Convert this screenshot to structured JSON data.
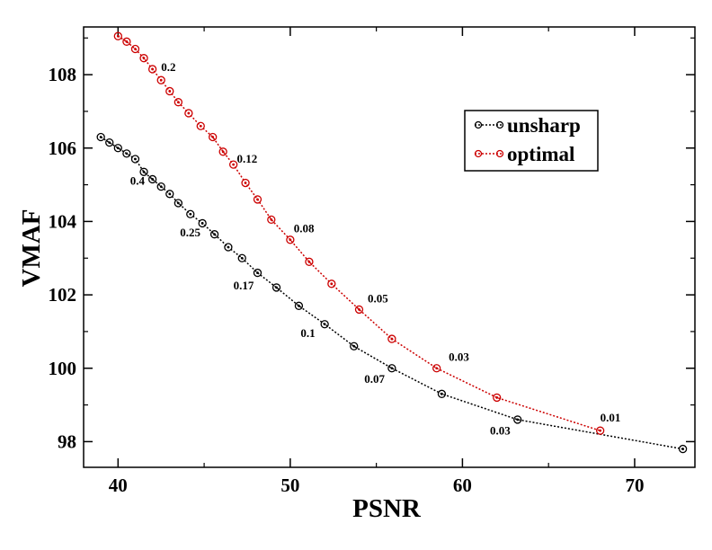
{
  "chart_data": {
    "type": "line",
    "title": "",
    "xlabel": "PSNR",
    "ylabel": "VMAF",
    "xlim": [
      38,
      73.5
    ],
    "ylim": [
      97.3,
      109.3
    ],
    "x_ticks": [
      40,
      50,
      60,
      70
    ],
    "y_ticks": [
      98,
      100,
      102,
      104,
      106,
      108
    ],
    "legend_position": "top-right",
    "series": [
      {
        "name": "unsharp",
        "color": "#000000",
        "points": [
          [
            39.0,
            106.3
          ],
          [
            39.5,
            106.15
          ],
          [
            40.0,
            106.0
          ],
          [
            40.5,
            105.85
          ],
          [
            41.0,
            105.7
          ],
          [
            41.5,
            105.35
          ],
          [
            42.0,
            105.15
          ],
          [
            42.5,
            104.95
          ],
          [
            43.0,
            104.75
          ],
          [
            43.5,
            104.5
          ],
          [
            44.2,
            104.2
          ],
          [
            44.9,
            103.95
          ],
          [
            45.6,
            103.65
          ],
          [
            46.4,
            103.3
          ],
          [
            47.2,
            103.0
          ],
          [
            48.1,
            102.6
          ],
          [
            49.2,
            102.2
          ],
          [
            50.5,
            101.7
          ],
          [
            52.0,
            101.2
          ],
          [
            53.7,
            100.6
          ],
          [
            55.9,
            100.0
          ],
          [
            58.8,
            99.3
          ],
          [
            63.2,
            98.6
          ],
          [
            72.8,
            97.8
          ]
        ]
      },
      {
        "name": "optimal",
        "color": "#cc0000",
        "points": [
          [
            40.0,
            109.05
          ],
          [
            40.5,
            108.9
          ],
          [
            41.0,
            108.7
          ],
          [
            41.5,
            108.45
          ],
          [
            42.0,
            108.15
          ],
          [
            42.5,
            107.85
          ],
          [
            43.0,
            107.55
          ],
          [
            43.5,
            107.25
          ],
          [
            44.1,
            106.95
          ],
          [
            44.8,
            106.6
          ],
          [
            45.5,
            106.3
          ],
          [
            46.1,
            105.9
          ],
          [
            46.7,
            105.55
          ],
          [
            47.4,
            105.05
          ],
          [
            48.1,
            104.6
          ],
          [
            48.9,
            104.05
          ],
          [
            50.0,
            103.5
          ],
          [
            51.1,
            102.9
          ],
          [
            52.4,
            102.3
          ],
          [
            54.0,
            101.6
          ],
          [
            55.9,
            100.8
          ],
          [
            58.5,
            100.0
          ],
          [
            62.0,
            99.2
          ],
          [
            68.0,
            98.3
          ]
        ]
      }
    ],
    "annotations": [
      {
        "text": "0.2",
        "x": 42.5,
        "y": 108.1
      },
      {
        "text": "0.12",
        "x": 46.9,
        "y": 105.6
      },
      {
        "text": "0.08",
        "x": 50.2,
        "y": 103.7
      },
      {
        "text": "0.05",
        "x": 54.5,
        "y": 101.8
      },
      {
        "text": "0.03",
        "x": 59.2,
        "y": 100.2
      },
      {
        "text": "0.01",
        "x": 68.0,
        "y": 98.55
      },
      {
        "text": "0.4",
        "x": 40.7,
        "y": 105.0
      },
      {
        "text": "0.25",
        "x": 43.6,
        "y": 103.6
      },
      {
        "text": "0.17",
        "x": 46.7,
        "y": 102.15
      },
      {
        "text": "0.1",
        "x": 50.6,
        "y": 100.85
      },
      {
        "text": "0.07",
        "x": 54.3,
        "y": 99.6
      },
      {
        "text": "0.03",
        "x": 61.6,
        "y": 98.2
      }
    ]
  }
}
